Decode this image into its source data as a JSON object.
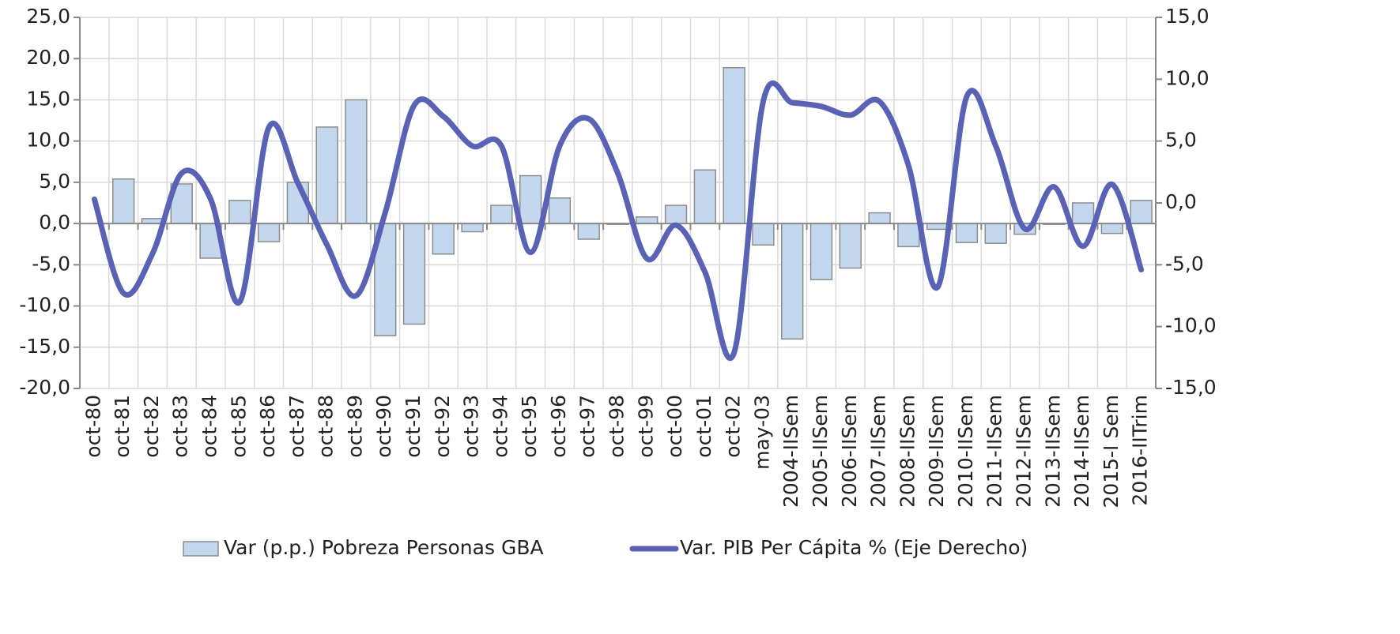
{
  "chart_data": {
    "type": "bar-line",
    "categories": [
      "oct-80",
      "oct-81",
      "oct-82",
      "oct-83",
      "oct-84",
      "oct-85",
      "oct-86",
      "oct-87",
      "oct-88",
      "oct-89",
      "oct-90",
      "oct-91",
      "oct-92",
      "oct-93",
      "oct-94",
      "oct-95",
      "oct-96",
      "oct-97",
      "oct-98",
      "oct-99",
      "oct-00",
      "oct-01",
      "oct-02",
      "may-03",
      "2004-IISem",
      "2005-IISem",
      "2006-IISem",
      "2007-IISem",
      "2008-IISem",
      "2009-IISem",
      "2010-IISem",
      "2011-IISem",
      "2012-IISem",
      "2013-IISem",
      "2014-IISem",
      "2015-I Sem",
      "2016-IITrim"
    ],
    "series": [
      {
        "name": "Var (p.p.) Pobreza Personas GBA",
        "type": "bar",
        "color": "#c3d8ee",
        "values": [
          0,
          5.4,
          0.6,
          4.8,
          -4.2,
          2.8,
          -2.2,
          5.0,
          11.7,
          15.0,
          -13.6,
          -12.2,
          -3.7,
          -1.0,
          2.2,
          5.8,
          3.1,
          -1.9,
          -0.1,
          0.8,
          2.2,
          6.5,
          18.9,
          -2.6,
          -14.0,
          -6.8,
          -5.4,
          1.3,
          -2.8,
          -0.7,
          -2.3,
          -2.4,
          -1.3,
          -0.1,
          2.5,
          -1.2,
          2.8
        ]
      },
      {
        "name": "Var. PIB Per Cápita % (Eje Derecho)",
        "type": "line",
        "axis": "y2",
        "color": "#5a62b6",
        "values": [
          0.3,
          -7.3,
          -4.1,
          2.4,
          0.3,
          -8.0,
          6.1,
          1.6,
          -3.4,
          -7.5,
          -0.8,
          7.9,
          7.0,
          4.6,
          4.6,
          -4.0,
          4.6,
          6.8,
          2.4,
          -4.5,
          -1.8,
          -5.6,
          -12.1,
          8.2,
          8.1,
          7.8,
          7.1,
          8.2,
          3.0,
          -6.8,
          8.6,
          4.6,
          -2.1,
          1.3,
          -3.5,
          1.5,
          -5.4
        ]
      }
    ],
    "ylim": [
      -20,
      25
    ],
    "yticks": [
      {
        "value": -20,
        "label": "-20,0"
      },
      {
        "value": -15,
        "label": "-15,0"
      },
      {
        "value": -10,
        "label": "-10,0"
      },
      {
        "value": -5,
        "label": "-5,0"
      },
      {
        "value": 0,
        "label": "0,0"
      },
      {
        "value": 5,
        "label": "5,0"
      },
      {
        "value": 10,
        "label": "10,0"
      },
      {
        "value": 15,
        "label": "15,0"
      },
      {
        "value": 20,
        "label": "20,0"
      },
      {
        "value": 25,
        "label": "25,0"
      }
    ],
    "y2lim": [
      -15,
      15
    ],
    "y2ticks": [
      {
        "value": -15,
        "label": "-15,0"
      },
      {
        "value": -10,
        "label": "-10,0"
      },
      {
        "value": -5,
        "label": "-5,0"
      },
      {
        "value": 0,
        "label": "0,0"
      },
      {
        "value": 5,
        "label": "5,0"
      },
      {
        "value": 10,
        "label": "10,0"
      },
      {
        "value": 15,
        "label": "15,0"
      }
    ],
    "grid": true,
    "legend": "bottom"
  }
}
